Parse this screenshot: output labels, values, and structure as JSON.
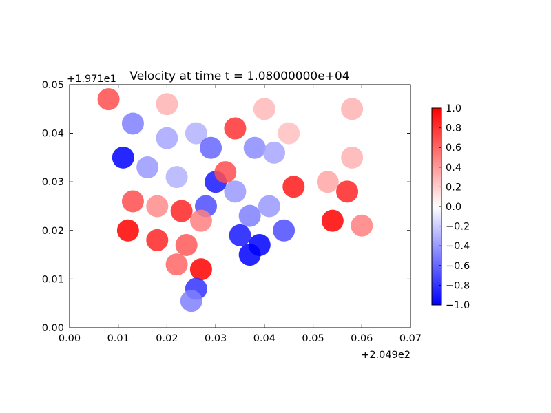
{
  "chart_data": {
    "type": "heatmap",
    "title": "Velocity at time t = 1.08000000e+04",
    "x_offset_label": "+2.049e2",
    "y_offset_label": "+1.971e1",
    "x_ticks": [
      "0.00",
      "0.01",
      "0.02",
      "0.03",
      "0.04",
      "0.05",
      "0.06",
      "0.07"
    ],
    "y_ticks": [
      "0.00",
      "0.01",
      "0.02",
      "0.03",
      "0.04",
      "0.05"
    ],
    "xlim": [
      0.0,
      0.07
    ],
    "ylim": [
      0.0,
      0.05
    ],
    "colormap": "bwr",
    "colorbar": {
      "vmin": -1.0,
      "vmax": 1.0,
      "ticks": [
        "1.0",
        "0.8",
        "0.6",
        "0.4",
        "0.2",
        "0.0",
        "−0.2",
        "−0.4",
        "−0.6",
        "−0.8",
        "−1.0"
      ]
    },
    "colors": {
      "low": "#0000ff",
      "mid": "#ffffff",
      "high": "#ff0000"
    },
    "regions": [
      {
        "x": 0.008,
        "y": 0.047,
        "value": 0.7
      },
      {
        "x": 0.02,
        "y": 0.046,
        "value": 0.3
      },
      {
        "x": 0.04,
        "y": 0.045,
        "value": 0.28
      },
      {
        "x": 0.058,
        "y": 0.045,
        "value": 0.3
      },
      {
        "x": 0.045,
        "y": 0.04,
        "value": 0.25
      },
      {
        "x": 0.058,
        "y": 0.035,
        "value": 0.3
      },
      {
        "x": 0.053,
        "y": 0.03,
        "value": 0.35
      },
      {
        "x": 0.057,
        "y": 0.028,
        "value": 0.85
      },
      {
        "x": 0.054,
        "y": 0.022,
        "value": 1.0
      },
      {
        "x": 0.06,
        "y": 0.021,
        "value": 0.5
      },
      {
        "x": 0.046,
        "y": 0.029,
        "value": 0.9
      },
      {
        "x": 0.034,
        "y": 0.041,
        "value": 0.8
      },
      {
        "x": 0.013,
        "y": 0.042,
        "value": -0.5
      },
      {
        "x": 0.02,
        "y": 0.039,
        "value": -0.35
      },
      {
        "x": 0.026,
        "y": 0.04,
        "value": -0.3
      },
      {
        "x": 0.011,
        "y": 0.035,
        "value": -1.0
      },
      {
        "x": 0.016,
        "y": 0.033,
        "value": -0.4
      },
      {
        "x": 0.022,
        "y": 0.031,
        "value": -0.3
      },
      {
        "x": 0.038,
        "y": 0.037,
        "value": -0.45
      },
      {
        "x": 0.042,
        "y": 0.036,
        "value": -0.35
      },
      {
        "x": 0.029,
        "y": 0.037,
        "value": -0.6
      },
      {
        "x": 0.03,
        "y": 0.03,
        "value": -0.9
      },
      {
        "x": 0.028,
        "y": 0.025,
        "value": -0.7
      },
      {
        "x": 0.034,
        "y": 0.028,
        "value": -0.4
      },
      {
        "x": 0.037,
        "y": 0.023,
        "value": -0.5
      },
      {
        "x": 0.041,
        "y": 0.025,
        "value": -0.4
      },
      {
        "x": 0.035,
        "y": 0.019,
        "value": -0.9
      },
      {
        "x": 0.039,
        "y": 0.017,
        "value": -1.0
      },
      {
        "x": 0.044,
        "y": 0.02,
        "value": -0.7
      },
      {
        "x": 0.037,
        "y": 0.015,
        "value": -1.0
      },
      {
        "x": 0.032,
        "y": 0.032,
        "value": 0.7
      },
      {
        "x": 0.013,
        "y": 0.026,
        "value": 0.7
      },
      {
        "x": 0.018,
        "y": 0.025,
        "value": 0.45
      },
      {
        "x": 0.023,
        "y": 0.024,
        "value": 0.85
      },
      {
        "x": 0.012,
        "y": 0.02,
        "value": 1.0
      },
      {
        "x": 0.018,
        "y": 0.018,
        "value": 0.85
      },
      {
        "x": 0.024,
        "y": 0.017,
        "value": 0.65
      },
      {
        "x": 0.027,
        "y": 0.022,
        "value": 0.5
      },
      {
        "x": 0.027,
        "y": 0.012,
        "value": 1.0
      },
      {
        "x": 0.022,
        "y": 0.013,
        "value": 0.6
      },
      {
        "x": 0.026,
        "y": 0.008,
        "value": -0.8
      },
      {
        "x": 0.025,
        "y": 0.0055,
        "value": -0.5
      }
    ]
  }
}
